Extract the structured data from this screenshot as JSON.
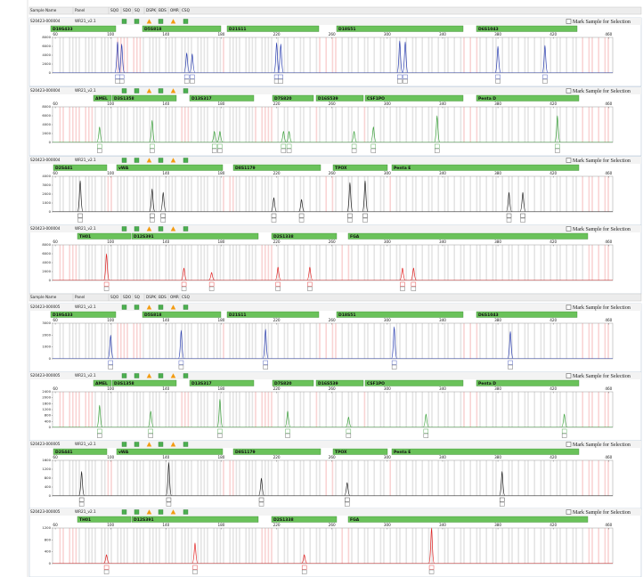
{
  "header": {
    "columns": [
      "Sample Name",
      "Panel",
      "SQO",
      "SDO",
      "SQ",
      "DSPK",
      "BDS",
      "OMR",
      "CSQ"
    ]
  },
  "axis": {
    "xlim": [
      58,
      463
    ],
    "xticks": [
      60,
      100,
      140,
      180,
      220,
      260,
      300,
      340,
      380,
      420,
      460
    ]
  },
  "samples": [
    {
      "sample_name": "S20423-000004",
      "panel": "WR21_v2.1",
      "checkbox_label": "Mark Sample for Selection",
      "dyes": [
        {
          "color": "#2b3fb0",
          "markers": [
            "D19S433",
            "D5S818",
            "D21S11",
            "D18S51",
            "D6S1043"
          ],
          "ylim": [
            0,
            8000
          ],
          "yticks": [
            0,
            2000,
            4000,
            6000,
            8000
          ],
          "peaks": {
            "x": [
              105,
              108,
              155,
              159,
              220,
              223,
              309,
              313,
              380,
              414
            ],
            "values": [
              7000,
              6500,
              4500,
              4300,
              6800,
              6500,
              7200,
              7000,
              6000,
              6200
            ]
          }
        },
        {
          "color": "#3aa03a",
          "markers": [
            "AMEL",
            "D3S1358",
            "D13S317",
            "D7S820",
            "D16S539",
            "CSF1PO",
            "Penta D"
          ],
          "ylim": [
            0,
            8000
          ],
          "yticks": [
            0,
            2000,
            4000,
            6000,
            8000
          ],
          "peaks": {
            "x": [
              92,
              130,
              175,
              179,
              225,
              229,
              276,
              290,
              336,
              423
            ],
            "values": [
              3500,
              5000,
              2500,
              2500,
              2500,
              2500,
              2500,
              3500,
              6000,
              6000
            ]
          }
        },
        {
          "color": "#222222",
          "markers": [
            "D2S441",
            "vWA",
            "D8S1179",
            "TPOX",
            "Penta E"
          ],
          "ylim": [
            0,
            4000
          ],
          "yticks": [
            0,
            1000,
            2000,
            3000,
            4000
          ],
          "peaks": {
            "x": [
              78,
              130,
              138,
              218,
              238,
              273,
              284,
              388,
              398
            ],
            "values": [
              3500,
              2600,
              2200,
              1600,
              1400,
              3300,
              3500,
              2200,
              2200
            ]
          }
        },
        {
          "color": "#e02020",
          "markers": [
            "TH01",
            "D12S391",
            "D2S1338",
            "FGA"
          ],
          "ylim": [
            0,
            8000
          ],
          "yticks": [
            0,
            2000,
            4000,
            6000,
            8000
          ],
          "peaks": {
            "x": [
              97,
              153,
              173,
              221,
              244,
              311,
              319
            ],
            "values": [
              6000,
              2800,
              1800,
              3000,
              3000,
              2800,
              2800
            ]
          }
        }
      ]
    },
    {
      "sample_name": "S20423-000005",
      "panel": "WR21_v2.1",
      "checkbox_label": "Mark Sample for Selection",
      "dyes": [
        {
          "color": "#2b3fb0",
          "markers": [
            "D19S433",
            "D5S818",
            "D21S11",
            "D18S51",
            "D6S1043"
          ],
          "ylim": [
            0,
            3000
          ],
          "yticks": [
            0,
            1000,
            2000,
            3000
          ],
          "peaks": {
            "x": [
              100,
              151,
              212,
              305,
              389
            ],
            "values": [
              2000,
              2400,
              2500,
              2700,
              2300
            ]
          }
        },
        {
          "color": "#3aa03a",
          "markers": [
            "AMEL",
            "D3S1358",
            "D13S317",
            "D7S820",
            "D16S539",
            "CSF1PO",
            "Penta D"
          ],
          "ylim": [
            0,
            2400
          ],
          "yticks": [
            0,
            400,
            800,
            1200,
            1600,
            2000,
            2400
          ],
          "peaks": {
            "x": [
              92,
              129,
              179,
              228,
              272,
              328,
              428
            ],
            "values": [
              1500,
              1100,
              1900,
              1100,
              700,
              900,
              900
            ]
          }
        },
        {
          "color": "#222222",
          "markers": [
            "D2S441",
            "vWA",
            "D8S1179",
            "TPOX",
            "Penta E"
          ],
          "ylim": [
            0,
            1600
          ],
          "yticks": [
            0,
            400,
            800,
            1200,
            1600
          ],
          "peaks": {
            "x": [
              79,
              142,
              209,
              271,
              383
            ],
            "values": [
              1100,
              1500,
              800,
              600,
              1100
            ]
          }
        },
        {
          "color": "#e02020",
          "markers": [
            "TH01",
            "D12S391",
            "D2S1338",
            "FGA"
          ],
          "ylim": [
            0,
            1200
          ],
          "yticks": [
            0,
            400,
            800,
            1200
          ],
          "peaks": {
            "x": [
              97,
              161,
              240,
              332
            ],
            "values": [
              300,
              700,
              300,
              1200
            ]
          }
        }
      ]
    }
  ]
}
